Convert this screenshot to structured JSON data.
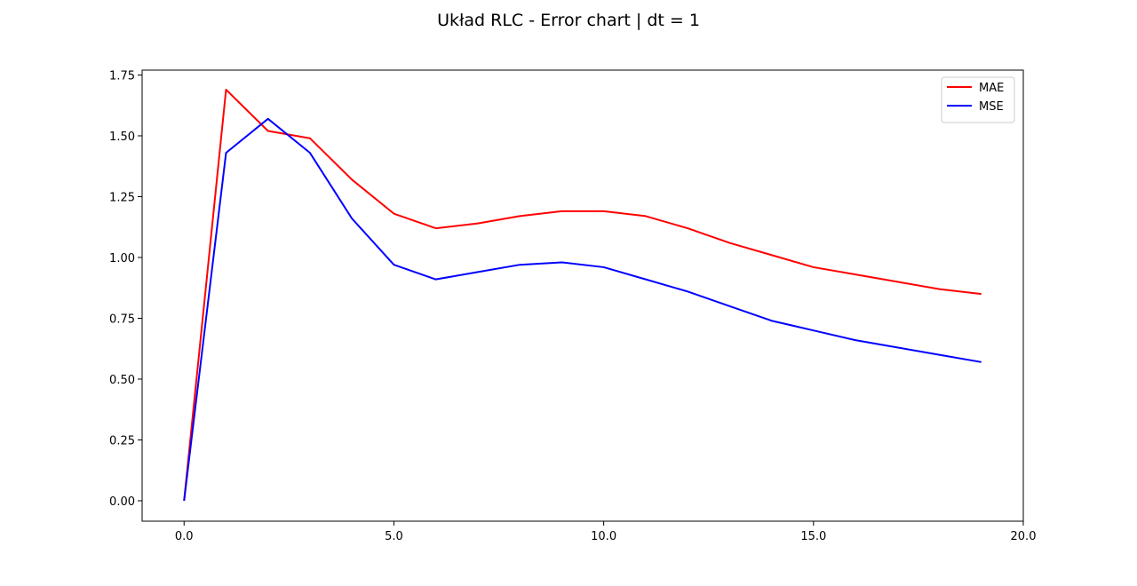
{
  "chart_data": {
    "type": "line",
    "title": "Układ RLC - Error chart | dt = 1",
    "xlabel": "",
    "ylabel": "",
    "xlim": [
      -1,
      20
    ],
    "ylim": [
      -0.084,
      1.77
    ],
    "xticks": [
      0,
      5,
      10,
      15,
      20
    ],
    "xtick_labels": [
      "0.0",
      "5.0",
      "10.0",
      "15.0",
      "20.0"
    ],
    "yticks": [
      0,
      0.25,
      0.5,
      0.75,
      1.0,
      1.25,
      1.5,
      1.75
    ],
    "ytick_labels": [
      "0.00",
      "0.25",
      "0.50",
      "0.75",
      "1.00",
      "1.25",
      "1.50",
      "1.75"
    ],
    "grid": false,
    "legend_position": "top-right",
    "x": [
      0,
      1,
      2,
      3,
      4,
      5,
      6,
      7,
      8,
      9,
      10,
      11,
      12,
      13,
      14,
      15,
      16,
      17,
      18,
      19
    ],
    "series": [
      {
        "name": "MAE",
        "color": "#ff0000",
        "values": [
          0.0,
          1.69,
          1.52,
          1.49,
          1.32,
          1.18,
          1.12,
          1.14,
          1.17,
          1.19,
          1.19,
          1.17,
          1.12,
          1.06,
          1.01,
          0.96,
          0.93,
          0.9,
          0.87,
          0.85
        ]
      },
      {
        "name": "MSE",
        "color": "#0000ff",
        "values": [
          0.0,
          1.43,
          1.57,
          1.43,
          1.16,
          0.97,
          0.91,
          0.94,
          0.97,
          0.98,
          0.96,
          0.91,
          0.86,
          0.8,
          0.74,
          0.7,
          0.66,
          0.63,
          0.6,
          0.57
        ]
      }
    ]
  }
}
